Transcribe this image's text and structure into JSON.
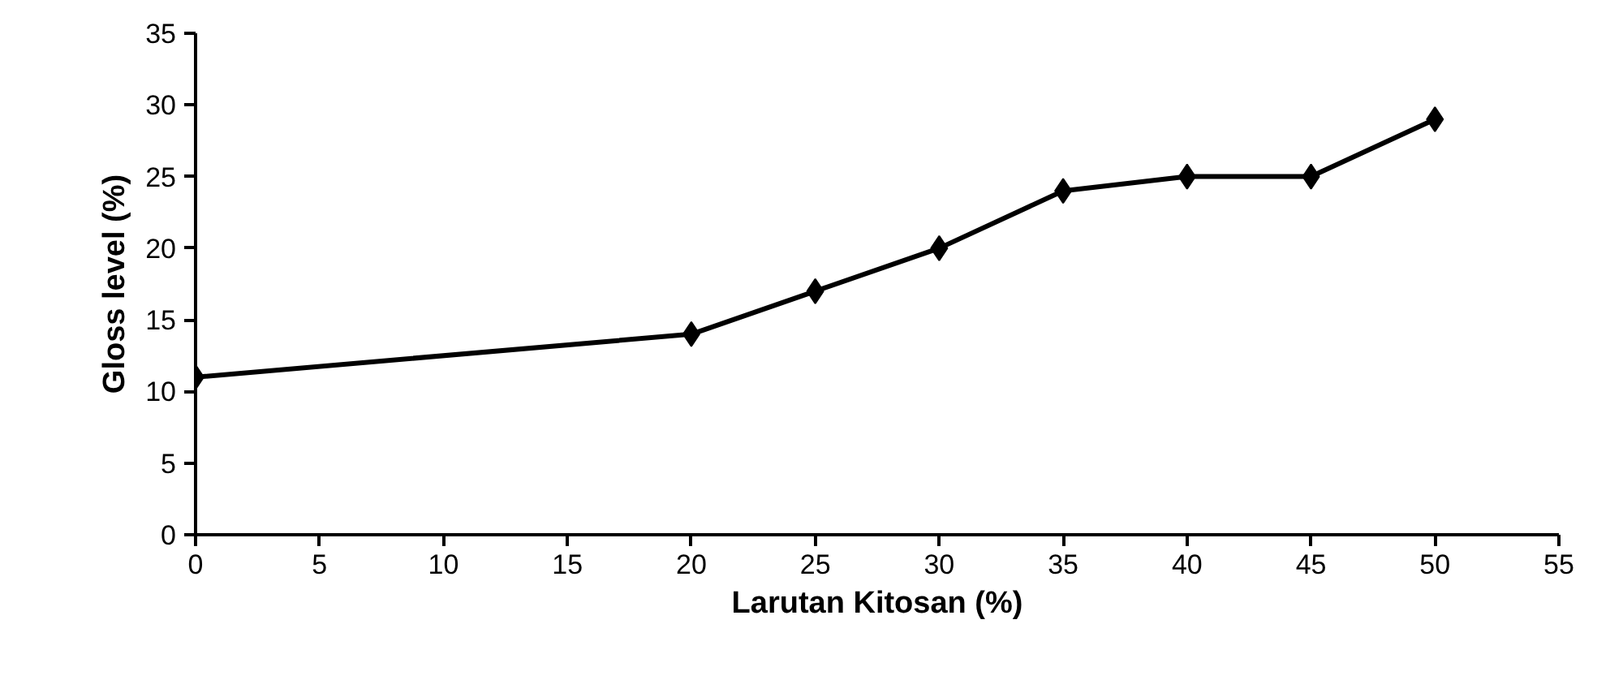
{
  "chart_data": {
    "type": "line",
    "xlabel": "Larutan Kitosan (%)",
    "ylabel": "Gloss level (%)",
    "x": [
      0,
      20,
      25,
      30,
      35,
      40,
      45,
      50
    ],
    "series": [
      {
        "color": "#000000",
        "values": [
          11,
          14,
          17,
          20,
          24,
          25,
          25,
          29
        ]
      }
    ],
    "xlim": [
      0,
      55
    ],
    "xticks": [
      0,
      5,
      10,
      15,
      20,
      25,
      30,
      35,
      40,
      45,
      50,
      55
    ],
    "ylim": [
      0,
      35
    ],
    "yticks": [
      0,
      5,
      10,
      15,
      20,
      25,
      30,
      35
    ],
    "grid": false,
    "marker": "diamond",
    "line_style": "solid"
  }
}
